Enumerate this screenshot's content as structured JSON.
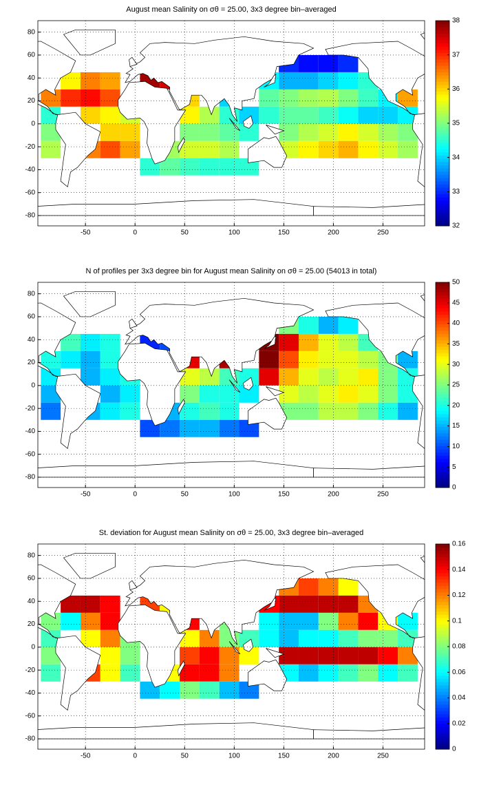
{
  "chart_data": [
    {
      "type": "heatmap",
      "title": "August mean Salinity on σθ = 25.00, 3x3 degree bin–averaged",
      "colormap": "jet",
      "grid": true,
      "x": [
        -85,
        -65,
        -45,
        -25,
        -5,
        15,
        35,
        55,
        75,
        95,
        115,
        135,
        155,
        175,
        195,
        215,
        235,
        255,
        275
      ],
      "y": [
        52.5,
        37.5,
        22.5,
        7.5,
        -7.5,
        -22.5,
        -37.5
      ],
      "values": [
        [
          null,
          null,
          null,
          null,
          null,
          null,
          null,
          null,
          null,
          null,
          null,
          null,
          33,
          32.8,
          32.8,
          33,
          null,
          null,
          null
        ],
        [
          null,
          35.8,
          36.5,
          36.3,
          null,
          37.8,
          37.5,
          null,
          null,
          null,
          null,
          34.2,
          33.8,
          33.8,
          34,
          34.2,
          34.5,
          null,
          null
        ],
        [
          36.5,
          37,
          37.2,
          36.8,
          null,
          null,
          null,
          36,
          null,
          34,
          null,
          34.8,
          35,
          35.2,
          35.3,
          35,
          34.6,
          34.2,
          36.3
        ],
        [
          34.5,
          null,
          36,
          35.8,
          35.5,
          null,
          null,
          35.8,
          35.3,
          34.5,
          34,
          34.5,
          34.8,
          34.8,
          34.6,
          34.3,
          34,
          34,
          34.2
        ],
        [
          35,
          null,
          null,
          36,
          36,
          null,
          null,
          35,
          35,
          34.8,
          34.5,
          null,
          35,
          35.3,
          35.5,
          35.8,
          35.5,
          35.2,
          35
        ],
        [
          35.3,
          null,
          36.5,
          36.8,
          36.3,
          null,
          35.2,
          35.5,
          35.5,
          35.3,
          null,
          null,
          35.5,
          35.8,
          36,
          36.2,
          35.8,
          35.5,
          35.2
        ],
        [
          null,
          null,
          null,
          null,
          null,
          34.5,
          34.8,
          34.6,
          34.5,
          34.5,
          34.5,
          null,
          null,
          null,
          null,
          null,
          null,
          null,
          null
        ]
      ],
      "xlim": [
        -98,
        292
      ],
      "ylim": [
        -89,
        90
      ],
      "xticks": [
        -50,
        0,
        50,
        100,
        150,
        200,
        250
      ],
      "yticks": [
        -80,
        -60,
        -40,
        -20,
        0,
        20,
        40,
        60,
        80
      ],
      "clim": [
        32,
        38
      ],
      "cticks": [
        32,
        33,
        34,
        35,
        36,
        37,
        38
      ]
    },
    {
      "type": "heatmap",
      "title": "N of profiles per 3x3 degree bin for August mean Salinity on σθ = 25.00 (54013 in total)",
      "colormap": "jet",
      "grid": true,
      "x": [
        -85,
        -65,
        -45,
        -25,
        -5,
        15,
        35,
        55,
        75,
        95,
        115,
        135,
        155,
        175,
        195,
        215,
        235,
        255,
        275
      ],
      "y": [
        52.5,
        37.5,
        22.5,
        7.5,
        -7.5,
        -22.5,
        -37.5
      ],
      "values": [
        [
          null,
          null,
          null,
          null,
          null,
          null,
          null,
          null,
          null,
          null,
          null,
          null,
          25,
          20,
          15,
          18,
          null,
          null,
          null
        ],
        [
          null,
          22,
          18,
          20,
          null,
          8,
          10,
          null,
          null,
          null,
          null,
          50,
          45,
          35,
          30,
          28,
          22,
          null,
          null
        ],
        [
          20,
          18,
          15,
          20,
          null,
          null,
          null,
          45,
          null,
          48,
          null,
          50,
          40,
          32,
          30,
          30,
          28,
          25,
          15
        ],
        [
          18,
          null,
          15,
          18,
          20,
          null,
          null,
          30,
          28,
          22,
          20,
          45,
          35,
          30,
          28,
          30,
          32,
          25,
          20
        ],
        [
          15,
          null,
          null,
          15,
          18,
          null,
          null,
          25,
          20,
          20,
          18,
          null,
          30,
          28,
          30,
          32,
          30,
          25,
          20
        ],
        [
          12,
          null,
          15,
          18,
          20,
          null,
          15,
          20,
          22,
          20,
          null,
          null,
          25,
          25,
          28,
          28,
          25,
          20,
          15
        ],
        [
          null,
          null,
          null,
          null,
          null,
          10,
          12,
          15,
          15,
          12,
          10,
          null,
          null,
          null,
          null,
          null,
          null,
          null,
          null
        ]
      ],
      "xlim": [
        -98,
        292
      ],
      "ylim": [
        -89,
        90
      ],
      "xticks": [
        -50,
        0,
        50,
        100,
        150,
        200,
        250
      ],
      "yticks": [
        -80,
        -60,
        -40,
        -20,
        0,
        20,
        40,
        60,
        80
      ],
      "clim": [
        0,
        50
      ],
      "cticks": [
        0,
        5,
        10,
        15,
        20,
        25,
        30,
        35,
        40,
        45,
        50
      ]
    },
    {
      "type": "heatmap",
      "title": "St. deviation for August mean Salinity on σθ = 25.00, 3x3 degree bin–averaged",
      "colormap": "jet",
      "grid": true,
      "x": [
        -85,
        -65,
        -45,
        -25,
        -5,
        15,
        35,
        55,
        75,
        95,
        115,
        135,
        155,
        175,
        195,
        215,
        235,
        255,
        275
      ],
      "y": [
        52.5,
        37.5,
        22.5,
        7.5,
        -7.5,
        -22.5,
        -37.5
      ],
      "values": [
        [
          null,
          null,
          null,
          null,
          null,
          null,
          null,
          null,
          null,
          null,
          null,
          null,
          0.12,
          0.13,
          0.12,
          0.1,
          null,
          null,
          null
        ],
        [
          null,
          0.15,
          0.15,
          0.14,
          null,
          0.13,
          0.1,
          null,
          null,
          null,
          null,
          0.14,
          0.15,
          0.15,
          0.15,
          0.15,
          0.12,
          null,
          null
        ],
        [
          0.08,
          0.06,
          0.12,
          0.14,
          null,
          null,
          null,
          0.14,
          null,
          0.08,
          null,
          0.06,
          0.05,
          0.05,
          0.08,
          0.12,
          0.14,
          0.1,
          0.06
        ],
        [
          0.07,
          null,
          0.1,
          0.12,
          0.08,
          null,
          null,
          0.1,
          0.12,
          0.08,
          0.07,
          0.06,
          0.05,
          0.06,
          0.06,
          0.07,
          0.08,
          0.08,
          0.07
        ],
        [
          0.08,
          null,
          null,
          0.1,
          0.08,
          null,
          null,
          0.13,
          0.14,
          0.12,
          0.1,
          null,
          0.15,
          0.15,
          0.15,
          0.15,
          0.15,
          0.14,
          0.12
        ],
        [
          0.07,
          null,
          0.13,
          0.1,
          0.07,
          null,
          0.1,
          0.14,
          0.14,
          0.12,
          null,
          null,
          0.06,
          0.05,
          0.06,
          0.07,
          0.08,
          0.06,
          0.07
        ],
        [
          null,
          null,
          null,
          null,
          null,
          0.05,
          0.06,
          0.08,
          0.07,
          0.05,
          0.04,
          null,
          null,
          null,
          null,
          null,
          null,
          null,
          null
        ]
      ],
      "xlim": [
        -98,
        292
      ],
      "ylim": [
        -89,
        90
      ],
      "xticks": [
        -50,
        0,
        50,
        100,
        150,
        200,
        250
      ],
      "yticks": [
        -80,
        -60,
        -40,
        -20,
        0,
        20,
        40,
        60,
        80
      ],
      "clim": [
        0,
        0.16
      ],
      "cticks": [
        0,
        0.02,
        0.04,
        0.06,
        0.08,
        0.1,
        0.12,
        0.14,
        0.16
      ]
    }
  ]
}
